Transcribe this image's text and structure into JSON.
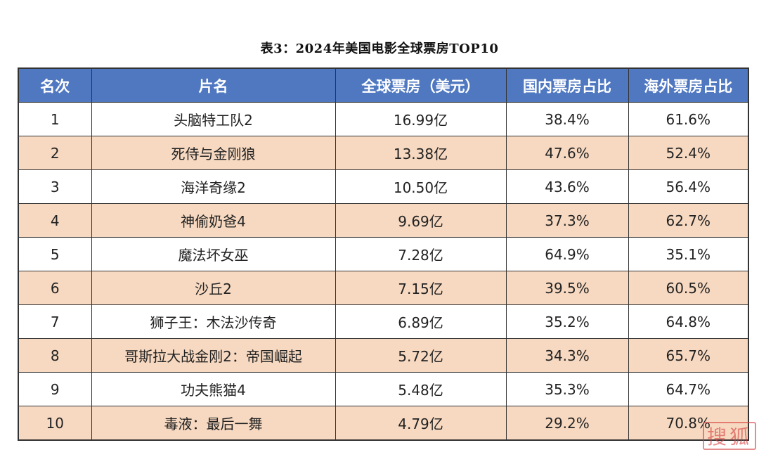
{
  "caption": "表3：2024年美国电影全球票房TOP10",
  "table": {
    "headers": [
      "名次",
      "片名",
      "全球票房（美元）",
      "国内票房占比",
      "海外票房占比"
    ],
    "rows": [
      [
        "1",
        "头脑特工队2",
        "16.99亿",
        "38.4%",
        "61.6%"
      ],
      [
        "2",
        "死侍与金刚狼",
        "13.38亿",
        "47.6%",
        "52.4%"
      ],
      [
        "3",
        "海洋奇缘2",
        "10.50亿",
        "43.6%",
        "56.4%"
      ],
      [
        "4",
        "神偷奶爸4",
        "9.69亿",
        "37.3%",
        "62.7%"
      ],
      [
        "5",
        "魔法坏女巫",
        "7.28亿",
        "64.9%",
        "35.1%"
      ],
      [
        "6",
        "沙丘2",
        "7.15亿",
        "39.5%",
        "60.5%"
      ],
      [
        "7",
        "狮子王：木法沙传奇",
        "6.89亿",
        "35.2%",
        "64.8%"
      ],
      [
        "8",
        "哥斯拉大战金刚2：帝国崛起",
        "5.72亿",
        "34.3%",
        "65.7%"
      ],
      [
        "9",
        "功夫熊猫4",
        "5.48亿",
        "35.3%",
        "64.7%"
      ],
      [
        "10",
        "毒液：最后一舞",
        "4.79亿",
        "29.2%",
        "70.8%"
      ]
    ]
  },
  "colors": {
    "header_bg": "#4f78c1",
    "header_text": "#ffffff",
    "stripe_row": "#f7d9c1",
    "plain_row": "#ffffff",
    "border": "#333333",
    "watermark": "#d64040"
  },
  "watermark_text": "搜狐"
}
